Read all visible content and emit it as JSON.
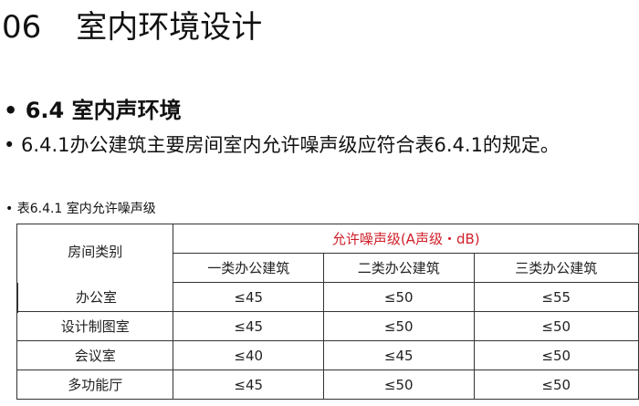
{
  "title": {
    "number": "06",
    "text": "室内环境设计"
  },
  "section": "• 6.4 室内声环境",
  "paragraph": "• 6.4.1办公建筑主要房间室内允许噪声级应符合表6.4.1的规定。",
  "caption": "•  表6.4.1 室内允许噪声级",
  "table": {
    "room_header": "房间类别",
    "group_header": "允许噪声级(A声级・dB)",
    "columns": [
      "一类办公建筑",
      "二类办公建筑",
      "三类办公建筑"
    ],
    "rows": [
      {
        "room": "办公室",
        "values": [
          "≤45",
          "≤50",
          "≤55"
        ]
      },
      {
        "room": "设计制图室",
        "values": [
          "≤45",
          "≤50",
          "≤50"
        ]
      },
      {
        "room": "会议室",
        "values": [
          "≤40",
          "≤45",
          "≤50"
        ]
      },
      {
        "room": "多功能厅",
        "values": [
          "≤45",
          "≤50",
          "≤50"
        ]
      }
    ]
  },
  "colors": {
    "group_header": "#d0202a"
  }
}
